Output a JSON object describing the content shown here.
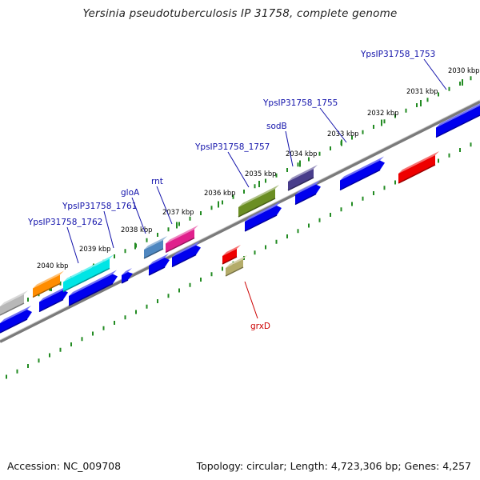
{
  "title": "Yersinia pseudotuberculosis IP 31758, complete genome",
  "footer": {
    "accession": "Accession: NC_009708",
    "topology": "Topology: circular; Length: 4,723,306 bp; Genes: 4,257"
  },
  "scale_ticks": [
    "2030 kbp",
    "2031 kbp",
    "2032 kbp",
    "2033 kbp",
    "2034 kbp",
    "2035 kbp",
    "2036 kbp",
    "2037 kbp",
    "2038 kbp",
    "2039 kbp",
    "2040 kbp"
  ],
  "gene_labels": [
    {
      "text": "YpsIP31758_1753",
      "color": "#1111aa"
    },
    {
      "text": "YpsIP31758_1755",
      "color": "#1111aa"
    },
    {
      "text": "sodB",
      "color": "#1111aa"
    },
    {
      "text": "YpsIP31758_1757",
      "color": "#1111aa"
    },
    {
      "text": "rnt",
      "color": "#1111aa"
    },
    {
      "text": "gloA",
      "color": "#1111aa"
    },
    {
      "text": "YpsIP31758_1761",
      "color": "#1111aa"
    },
    {
      "text": "YpsIP31758_1762",
      "color": "#1111aa"
    },
    {
      "text": "grxD",
      "color": "#cc0000"
    }
  ],
  "colors": {
    "backbone": "#7a7a7a",
    "scale_dots": "#228b22",
    "cds_blue": "#0000ee",
    "label_blue": "#1111aa",
    "label_red": "#cc0000"
  }
}
